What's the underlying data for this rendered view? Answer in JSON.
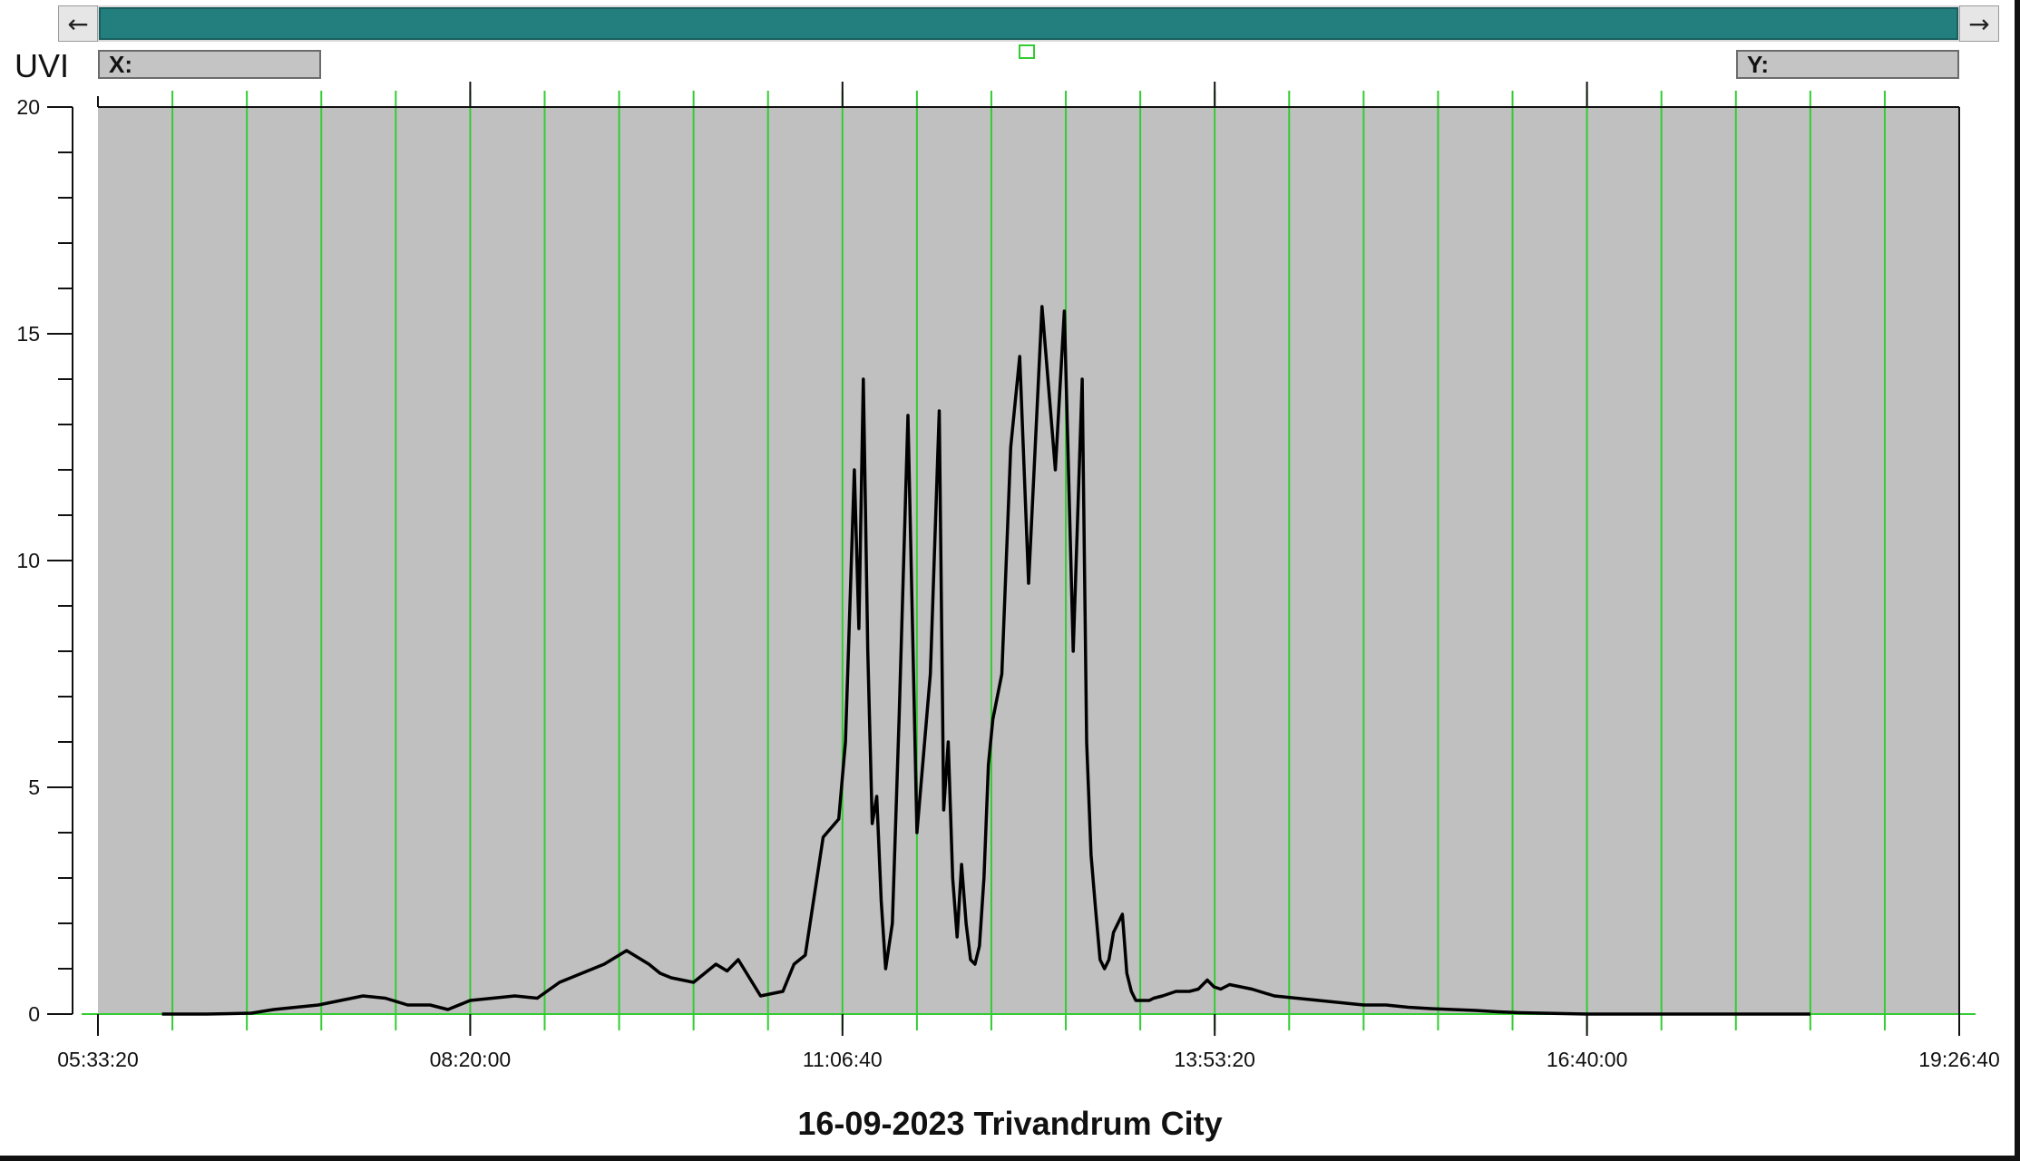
{
  "toolbar": {
    "scroll_left_icon": "left-arrow-icon",
    "scroll_right_icon": "right-arrow-icon",
    "scroll_left_glyph": "←",
    "scroll_right_glyph": "→"
  },
  "readouts": {
    "x_label": "X:",
    "y_label": "Y:"
  },
  "colors": {
    "plot_background": "#c0c0c0",
    "gridline": "#33cc33",
    "series_line": "#000000",
    "scroll_thumb": "#237e7e"
  },
  "chart_data": {
    "type": "line",
    "title": "16-09-2023 Trivandrum City",
    "ylabel": "UVI",
    "xlabel": "",
    "ylim": [
      0,
      20
    ],
    "y_ticks": [
      0,
      5,
      10,
      15,
      20
    ],
    "y_tick_labels": [
      "0",
      "5",
      "10",
      "15",
      "20"
    ],
    "xlim": [
      "05:33:20",
      "19:26:40"
    ],
    "x_tick_labels": [
      "05:33:20",
      "08:20:00",
      "11:06:40",
      "13:53:20",
      "16:40:00",
      "19:26:40"
    ],
    "grid": "vertical",
    "legend": "none",
    "series": [
      {
        "x": [
          "06:02",
          "06:22",
          "06:42",
          "06:52",
          "07:02",
          "07:12",
          "07:22",
          "07:32",
          "07:42",
          "07:52",
          "08:02",
          "08:10",
          "08:20",
          "08:30",
          "08:40",
          "08:50",
          "09:00",
          "09:10",
          "09:20",
          "09:30",
          "09:40",
          "09:45",
          "09:50",
          "10:00",
          "10:10",
          "10:15",
          "10:20",
          "10:30",
          "10:40",
          "10:45",
          "10:50",
          "10:58",
          "11:05",
          "11:08",
          "11:12",
          "11:14",
          "11:16",
          "11:18",
          "11:20",
          "11:22",
          "11:24",
          "11:26",
          "11:29",
          "11:32",
          "11:36",
          "11:40",
          "11:46",
          "11:50",
          "11:52",
          "11:54",
          "11:56",
          "11:58",
          "12:00",
          "12:02",
          "12:04",
          "12:06",
          "12:08",
          "12:10",
          "12:12",
          "12:14",
          "12:18",
          "12:22",
          "12:26",
          "12:30",
          "12:36",
          "12:42",
          "12:46",
          "12:50",
          "12:54",
          "12:56",
          "12:58",
          "13:00",
          "13:02",
          "13:04",
          "13:06",
          "13:08",
          "13:10",
          "13:12",
          "13:14",
          "13:16",
          "13:18",
          "13:20",
          "13:22",
          "13:24",
          "13:26",
          "13:30",
          "13:36",
          "13:42",
          "13:46",
          "13:50",
          "13:53",
          "13:56",
          "14:00",
          "14:10",
          "14:20",
          "14:30",
          "14:40",
          "14:50",
          "15:00",
          "15:10",
          "15:20",
          "15:30",
          "15:40",
          "15:50",
          "16:00",
          "16:10",
          "16:20",
          "16:30",
          "16:40",
          "16:50",
          "17:00",
          "17:10",
          "17:20",
          "17:30",
          "17:40",
          "17:50",
          "18:00",
          "18:10",
          "18:20"
        ],
        "values": [
          0.0,
          0.0,
          0.02,
          0.1,
          0.15,
          0.2,
          0.3,
          0.4,
          0.35,
          0.2,
          0.2,
          0.1,
          0.3,
          0.35,
          0.4,
          0.35,
          0.7,
          0.9,
          1.1,
          1.4,
          1.1,
          0.9,
          0.8,
          0.7,
          1.1,
          0.95,
          1.2,
          0.4,
          0.5,
          1.1,
          1.3,
          3.9,
          4.3,
          6.0,
          12.0,
          8.5,
          14.0,
          8.0,
          4.2,
          4.8,
          2.5,
          1.0,
          2.0,
          6.5,
          13.2,
          4.0,
          7.5,
          13.3,
          4.5,
          6.0,
          3.0,
          1.7,
          3.3,
          2.0,
          1.2,
          1.1,
          1.5,
          3.0,
          5.5,
          6.5,
          7.5,
          12.5,
          14.5,
          9.5,
          15.6,
          12.0,
          15.5,
          8.0,
          14.0,
          6.0,
          3.5,
          2.3,
          1.2,
          1.0,
          1.2,
          1.8,
          2.0,
          2.2,
          0.9,
          0.5,
          0.3,
          0.3,
          0.3,
          0.3,
          0.35,
          0.4,
          0.5,
          0.5,
          0.55,
          0.75,
          0.6,
          0.55,
          0.65,
          0.55,
          0.4,
          0.35,
          0.3,
          0.25,
          0.2,
          0.2,
          0.15,
          0.12,
          0.1,
          0.08,
          0.05,
          0.03,
          0.02,
          0.01,
          0.0,
          0.0,
          0.0,
          0.0,
          0.0,
          0.0,
          0.0,
          0.0,
          0.0,
          0.0,
          0.0
        ]
      }
    ]
  }
}
